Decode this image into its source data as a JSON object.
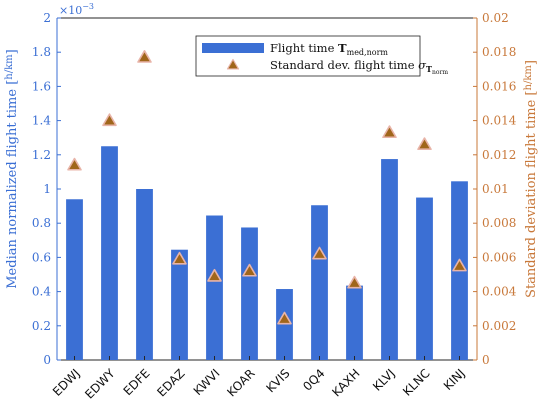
{
  "chart_data": {
    "type": "bar",
    "categories": [
      "EDWJ",
      "EDWY",
      "EDFE",
      "EDAZ",
      "KWVI",
      "KOAR",
      "KVIS",
      "0Q4",
      "KAXH",
      "KLVJ",
      "KLNC",
      "KINJ"
    ],
    "series": [
      {
        "name": "Flight time T_med,norm",
        "kind": "bar",
        "axis": "left",
        "values": [
          0.94,
          1.25,
          1.0,
          0.645,
          0.845,
          0.775,
          0.415,
          0.905,
          0.435,
          1.175,
          0.95,
          1.045
        ]
      },
      {
        "name": "Standard dev. flight time σ_T_norm",
        "kind": "marker",
        "axis": "right",
        "values": [
          0.0114,
          0.014,
          0.0177,
          0.0059,
          0.0049,
          0.0052,
          0.0024,
          0.0062,
          0.0045,
          0.0133,
          0.0126,
          0.0055
        ]
      }
    ],
    "yleft": {
      "label": "Median normalized flight time [h/km]",
      "label_main": "Median normalized flight time",
      "label_unit_num": "h",
      "label_unit_den": "km",
      "lim": [
        0,
        2
      ],
      "ticks": [
        "0",
        "0.2",
        "0.4",
        "0.6",
        "0.8",
        "1",
        "1.2",
        "1.4",
        "1.6",
        "1.8",
        "2"
      ],
      "tick_values": [
        0,
        0.2,
        0.4,
        0.6,
        0.8,
        1.0,
        1.2,
        1.4,
        1.6,
        1.8,
        2.0
      ],
      "multiplier": "×10",
      "multiplier_exp": "−3",
      "color": "#3b6fd4"
    },
    "yright": {
      "label": "Standard deviation flight time [h/km]",
      "label_main": "Standard deviation flight time",
      "label_unit_num": "h",
      "label_unit_den": "km",
      "lim": [
        0,
        0.02
      ],
      "ticks": [
        "0",
        "0.002",
        "0.004",
        "0.006",
        "0.008",
        "0.01",
        "0.012",
        "0.014",
        "0.016",
        "0.018",
        "0.02"
      ],
      "tick_values": [
        0,
        0.002,
        0.004,
        0.006,
        0.008,
        0.01,
        0.012,
        0.014,
        0.016,
        0.018,
        0.02
      ],
      "color": "#c8783a"
    },
    "legend": {
      "placement": "top-center",
      "bar_label": "Flight time",
      "bar_symbol": "T",
      "bar_subscript": "med,norm",
      "marker_label": "Standard dev. flight time",
      "marker_symbol": "σ",
      "marker_subscript": "T",
      "marker_subsubscript": "norm"
    },
    "colors": {
      "bar": "#3b6fd4",
      "marker_fill": "#a0661b",
      "marker_edge": "#e8b4a8",
      "axis": "#262626"
    },
    "grid": false
  }
}
